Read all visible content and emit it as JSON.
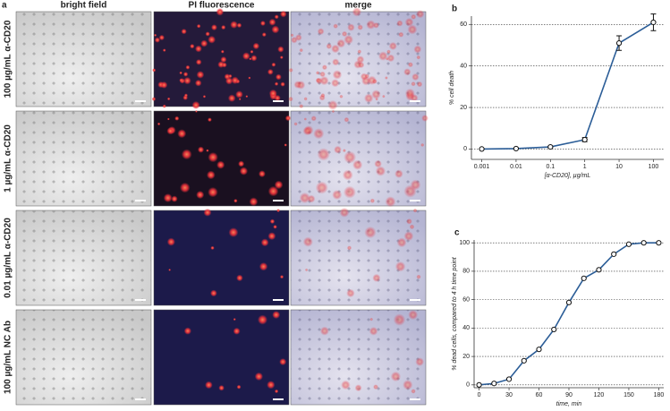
{
  "figure": {
    "panel_label": "a",
    "columns": [
      "bright field",
      "PI fluorescence",
      "merge"
    ],
    "rows": [
      "100 µg/mL α-CD20",
      "1 µg/mL α-CD20",
      "0.01 µg/mL α-CD20",
      "100 µg/mL NC Ab"
    ]
  },
  "chart_data": [
    {
      "type": "line",
      "title": "b",
      "x_label": "[α-CD20], µg/mL",
      "y_label": "% cell death",
      "x": [
        0.001,
        0.01,
        0.1,
        1,
        10,
        100
      ],
      "values": [
        0,
        0.2,
        1,
        4.5,
        51,
        61
      ],
      "errors": [
        0,
        0,
        0.3,
        1,
        3.5,
        4
      ],
      "color": "#2b5d97",
      "xscale": "log",
      "xlim": [
        0.0005,
        200
      ],
      "xticks": [
        0.001,
        0.01,
        0.1,
        1,
        10,
        100
      ],
      "ylim": [
        -5,
        64
      ],
      "yticks": [
        0,
        20,
        40,
        60
      ],
      "grid": true
    },
    {
      "type": "line",
      "title": "c",
      "x_label": "time, min",
      "y_label": "% dead cells, compared to 4 h time point",
      "x": [
        0,
        15,
        30,
        45,
        60,
        75,
        90,
        105,
        120,
        135,
        150,
        165,
        180
      ],
      "values": [
        0,
        1,
        4,
        17,
        25,
        39,
        58,
        75,
        81,
        92,
        99,
        100,
        100
      ],
      "color": "#2b5d97",
      "xlim": [
        -5,
        185
      ],
      "xticks": [
        0,
        30,
        60,
        90,
        120,
        150,
        180
      ],
      "ylim": [
        -2,
        102
      ],
      "yticks": [
        0,
        20,
        40,
        60,
        80,
        100
      ],
      "grid": true
    }
  ]
}
